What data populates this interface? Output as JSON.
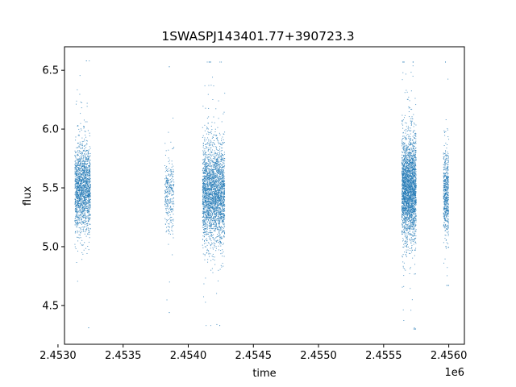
{
  "chart_data": {
    "type": "scatter",
    "title": "1SWASPJ143401.77+390723.3",
    "xlabel": "time",
    "ylabel": "flux",
    "x_offset_label": "1e6",
    "xlim": [
      2.45305,
      2.45612
    ],
    "ylim": [
      4.17,
      6.7
    ],
    "x_ticks": [
      2.453,
      2.4535,
      2.454,
      2.4545,
      2.455,
      2.4555,
      2.456
    ],
    "x_tick_labels": [
      "2.4530",
      "2.4535",
      "2.4540",
      "2.4545",
      "2.4550",
      "2.4555",
      "2.4560"
    ],
    "y_ticks": [
      4.5,
      5.0,
      5.5,
      6.0,
      6.5
    ],
    "y_tick_labels": [
      "4.5",
      "5.0",
      "5.5",
      "6.0",
      "6.5"
    ],
    "grid": false,
    "marker_color": "#1f77b4",
    "series": [
      {
        "clusters": [
          {
            "x_range": [
              2.45313,
              2.45325
            ],
            "y_center": 5.5,
            "y_spread": 0.33,
            "y_min": 4.31,
            "y_max": 6.58,
            "count": 1700
          },
          {
            "x_range": [
              2.45382,
              2.45389
            ],
            "y_center": 5.45,
            "y_spread": 0.28,
            "y_min": 4.44,
            "y_max": 6.53,
            "count": 300
          },
          {
            "x_range": [
              2.45411,
              2.45428
            ],
            "y_center": 5.45,
            "y_spread": 0.38,
            "y_min": 4.33,
            "y_max": 6.57,
            "count": 2600
          },
          {
            "x_range": [
              2.45564,
              2.45575
            ],
            "y_center": 5.5,
            "y_spread": 0.4,
            "y_min": 4.3,
            "y_max": 6.57,
            "count": 2600
          },
          {
            "x_range": [
              2.45596,
              2.456
            ],
            "y_center": 5.45,
            "y_spread": 0.35,
            "y_min": 4.67,
            "y_max": 6.57,
            "count": 550
          }
        ]
      }
    ]
  }
}
